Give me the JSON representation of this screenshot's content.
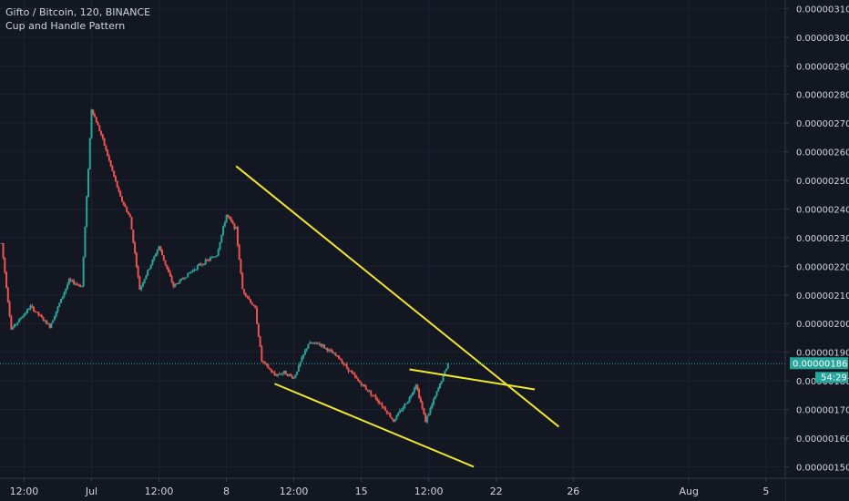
{
  "header": {
    "title": "Gifto / Bitcoin, 120, BINANCE",
    "subtitle": "Cup and Handle Pattern"
  },
  "colors": {
    "background": "#131722",
    "up": "#26a69a",
    "down": "#ef5350",
    "trendline": "#f0e62a",
    "price_line": "#26a69a",
    "axis_text": "#d1d4dc",
    "grid": "#1e2230"
  },
  "price_axis": {
    "ticks": [
      "0.00000310",
      "0.00000300",
      "0.00000290",
      "0.00000280",
      "0.00000270",
      "0.00000260",
      "0.00000250",
      "0.00000240",
      "0.00000230",
      "0.00000220",
      "0.00000210",
      "0.00000200",
      "0.00000190",
      "0.00000180",
      "0.00000170",
      "0.00000160",
      "0.00000150"
    ],
    "current_price": "0.00000186",
    "countdown": "54:29"
  },
  "time_axis": {
    "ticks": [
      "12:00",
      "Jul",
      "12:00",
      "8",
      "12:00",
      "15",
      "12:00",
      "22",
      "26",
      "Aug",
      "5"
    ]
  },
  "chart_data": {
    "type": "candlestick",
    "title": "Gifto / Bitcoin, 120, BINANCE",
    "subtitle": "Cup and Handle Pattern",
    "ylim": [
      1.46e-06,
      3.13e-06
    ],
    "x_range": [
      "Jun 26 06:00",
      "Aug 6 00:00"
    ],
    "grid": false,
    "current_price": 1.86e-06,
    "price_path": [
      [
        "Jun 26 08:00",
        2.28e-06
      ],
      [
        "Jun 26 20:00",
        1.98e-06
      ],
      [
        "Jun 27 20:00",
        2.06e-06
      ],
      [
        "Jun 28 20:00",
        1.99e-06
      ],
      [
        "Jun 29 20:00",
        2.15e-06
      ],
      [
        "Jun 30 12:00",
        2.13e-06
      ],
      [
        "Jul 1 00:00",
        2.75e-06
      ],
      [
        "Jul 1 12:00",
        2.66e-06
      ],
      [
        "Jul 2 12:00",
        2.44e-06
      ],
      [
        "Jul 3 00:00",
        2.37e-06
      ],
      [
        "Jul 3 12:00",
        2.12e-06
      ],
      [
        "Jul 4 12:00",
        2.27e-06
      ],
      [
        "Jul 5 06:00",
        2.13e-06
      ],
      [
        "Jul 6 12:00",
        2.2e-06
      ],
      [
        "Jul 7 12:00",
        2.24e-06
      ],
      [
        "Jul 8 00:00",
        2.38e-06
      ],
      [
        "Jul 8 12:00",
        2.33e-06
      ],
      [
        "Jul 8 20:00",
        2.12e-06
      ],
      [
        "Jul 9 12:00",
        2.05e-06
      ],
      [
        "Jul 9 20:00",
        1.87e-06
      ],
      [
        "Jul 10 12:00",
        1.82e-06
      ],
      [
        "Jul 11 00:00",
        1.83e-06
      ],
      [
        "Jul 11 12:00",
        1.81e-06
      ],
      [
        "Jul 12 06:00",
        1.93e-06
      ],
      [
        "Jul 12 20:00",
        1.93e-06
      ],
      [
        "Jul 13 20:00",
        1.88e-06
      ],
      [
        "Jul 14 20:00",
        1.8e-06
      ],
      [
        "Jul 15 18:00",
        1.74e-06
      ],
      [
        "Jul 16 06:00",
        1.7e-06
      ],
      [
        "Jul 16 16:00",
        1.66e-06
      ],
      [
        "Jul 17 12:00",
        1.74e-06
      ],
      [
        "Jul 17 20:00",
        1.79e-06
      ],
      [
        "Jul 18 08:00",
        1.66e-06
      ],
      [
        "Jul 18 22:00",
        1.76e-06
      ],
      [
        "Jul 19 12:00",
        1.86e-06
      ]
    ],
    "trendlines": [
      {
        "from": [
          "Jul 8 12:00",
          2.55e-06
        ],
        "to": [
          "Jul 25 06:00",
          1.64e-06
        ]
      },
      {
        "from": [
          "Jul 10 12:00",
          1.79e-06
        ],
        "to": [
          "Jul 20 20:00",
          1.5e-06
        ]
      },
      {
        "from": [
          "Jul 17 12:00",
          1.84e-06
        ],
        "to": [
          "Jul 24 00:00",
          1.77e-06
        ]
      }
    ]
  }
}
